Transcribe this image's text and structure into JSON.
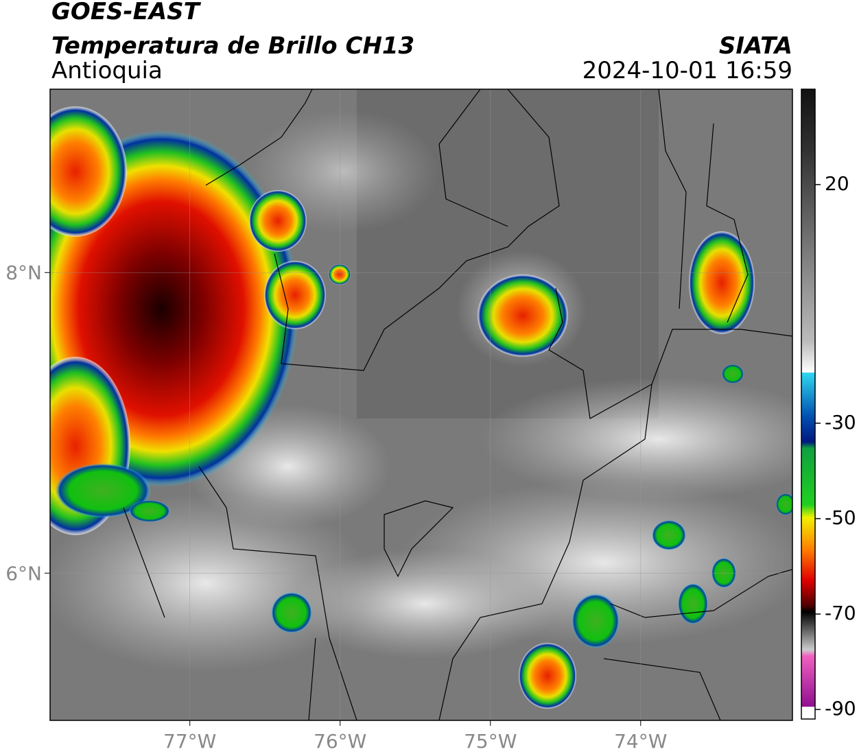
{
  "header": {
    "title": "GOES-EAST",
    "subtitle": "Temperatura de Brillo CH13",
    "region": "Antioquia",
    "source": "SIATA",
    "datetime": "2024-10-01 16:59"
  },
  "map": {
    "xlim": [
      -77.93,
      -72.99
    ],
    "ylim": [
      5.02,
      9.22
    ],
    "xticks": [
      {
        "value": -77,
        "label": "77°W"
      },
      {
        "value": -76,
        "label": "76°W"
      },
      {
        "value": -75,
        "label": "75°W"
      },
      {
        "value": -74,
        "label": "74°W"
      }
    ],
    "yticks": [
      {
        "value": 8,
        "label": "8°N"
      },
      {
        "value": 6,
        "label": "6°N"
      }
    ],
    "grid": true
  },
  "colorbar": {
    "lim": [
      -92,
      40
    ],
    "ticks": [
      20,
      -30,
      -50,
      -70,
      -90
    ]
  }
}
